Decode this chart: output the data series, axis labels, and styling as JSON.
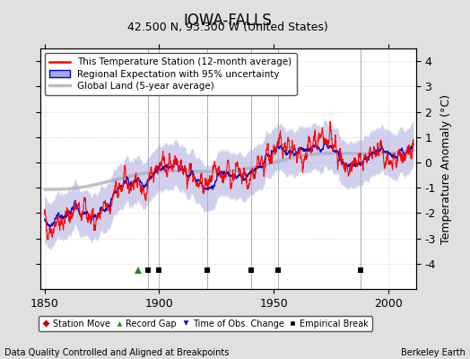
{
  "title": "IOWA-FALLS",
  "subtitle": "42.500 N, 93.300 W (United States)",
  "ylabel": "Temperature Anomaly (°C)",
  "xlabel_left": "Data Quality Controlled and Aligned at Breakpoints",
  "xlabel_right": "Berkeley Earth",
  "xlim": [
    1848,
    2012
  ],
  "ylim": [
    -5,
    4.5
  ],
  "yticks": [
    -4,
    -3,
    -2,
    -1,
    0,
    1,
    2,
    3,
    4
  ],
  "xticks": [
    1850,
    1900,
    1950,
    2000
  ],
  "grid_color": "#cccccc",
  "bg_color": "#e0e0e0",
  "plot_bg_color": "#ffffff",
  "title_fontsize": 12,
  "subtitle_fontsize": 9,
  "legend_fontsize": 7.5,
  "axis_fontsize": 9,
  "red_line_color": "#ff0000",
  "blue_line_color": "#0000cc",
  "blue_fill_color": "#aaaadd",
  "gray_line_color": "#bbbbbb",
  "marker_y": -4.25,
  "empirical_breaks": [
    1895,
    1900,
    1921,
    1940,
    1952,
    1988
  ],
  "record_gaps": [
    1891
  ],
  "station_moves": [],
  "obs_changes": [],
  "vline_color": "#999999",
  "legend_items": [
    "This Temperature Station (12-month average)",
    "Regional Expectation with 95% uncertainty",
    "Global Land (5-year average)"
  ],
  "bottom_legend": [
    "Station Move",
    "Record Gap",
    "Time of Obs. Change",
    "Empirical Break"
  ]
}
